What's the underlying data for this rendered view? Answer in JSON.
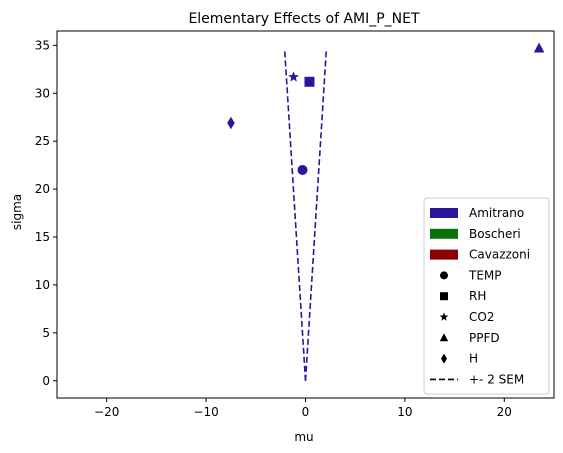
{
  "chart_data": {
    "type": "scatter",
    "title": "Elementary Effects of AMI_P_NET",
    "xlabel": "mu",
    "ylabel": "sigma",
    "xlim": [
      -25,
      25
    ],
    "ylim": [
      -1.8,
      36.5
    ],
    "x_ticks": [
      -20,
      -10,
      0,
      10,
      20
    ],
    "y_ticks": [
      0,
      5,
      10,
      15,
      20,
      25,
      30,
      35
    ],
    "grid": false,
    "legend_position": "lower-right",
    "series": [
      {
        "name": "Amitrano",
        "color": "#2a1799",
        "points": [
          {
            "label": "TEMP",
            "marker": "circle",
            "x": -0.3,
            "y": 22.0
          },
          {
            "label": "RH",
            "marker": "square",
            "x": 0.4,
            "y": 31.2
          },
          {
            "label": "CO2",
            "marker": "star",
            "x": -1.2,
            "y": 31.7
          },
          {
            "label": "PPFD",
            "marker": "triangle",
            "x": 23.5,
            "y": 34.7
          },
          {
            "label": "H",
            "marker": "diamond",
            "x": -7.5,
            "y": 26.9
          }
        ]
      }
    ],
    "sem_lines": {
      "label": "+- 2 SEM",
      "color": "#2a1799",
      "style": "dashed",
      "left": [
        [
          0,
          0
        ],
        [
          -2.1,
          34.6
        ]
      ],
      "right": [
        [
          0,
          0
        ],
        [
          2.1,
          34.6
        ]
      ]
    },
    "legend": {
      "models": [
        {
          "label": "Amitrano",
          "color": "#2a1799"
        },
        {
          "label": "Boscheri",
          "color": "#0a720a"
        },
        {
          "label": "Cavazzoni",
          "color": "#8b0000"
        }
      ],
      "markers": [
        {
          "label": "TEMP",
          "marker": "circle"
        },
        {
          "label": "RH",
          "marker": "square"
        },
        {
          "label": "CO2",
          "marker": "star"
        },
        {
          "label": "PPFD",
          "marker": "triangle"
        },
        {
          "label": "H",
          "marker": "diamond"
        }
      ],
      "line": {
        "label": "+- 2 SEM",
        "style": "dashed"
      }
    }
  }
}
